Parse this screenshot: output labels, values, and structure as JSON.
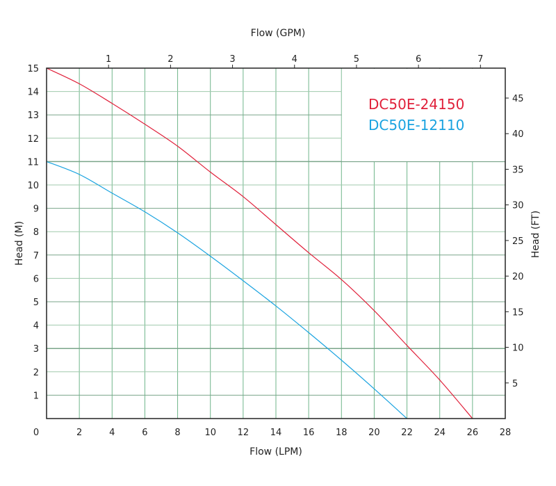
{
  "chart_data": {
    "type": "line",
    "xlabel": "Flow (LPM)",
    "x2label": "Flow (GPM)",
    "ylabel": "Head (M)",
    "y2label": "Head (FT)",
    "xlim": [
      0,
      28
    ],
    "ylim": [
      0,
      15
    ],
    "x2lim": [
      0,
      7.4
    ],
    "y2lim": [
      0,
      49.2
    ],
    "x_ticks": [
      0,
      2,
      4,
      6,
      8,
      10,
      12,
      14,
      16,
      18,
      20,
      22,
      24,
      26,
      28
    ],
    "y_ticks": [
      1,
      2,
      3,
      4,
      5,
      6,
      7,
      8,
      9,
      10,
      11,
      12,
      13,
      14,
      15
    ],
    "x2_ticks": [
      1,
      2,
      3,
      4,
      5,
      6,
      7
    ],
    "y2_ticks": [
      5,
      10,
      15,
      20,
      25,
      30,
      35,
      40,
      45
    ],
    "grid": true,
    "legend_placement": "top-right",
    "series": [
      {
        "name": "DC50E-24150",
        "color": "#e0203a",
        "x": [
          0,
          2,
          4,
          6,
          8,
          10,
          12,
          14,
          16,
          18,
          20,
          22,
          24,
          26
        ],
        "y": [
          15,
          14.33,
          13.49,
          12.6,
          11.66,
          10.55,
          9.5,
          8.3,
          7.1,
          5.95,
          4.62,
          3.13,
          1.65,
          0
        ]
      },
      {
        "name": "DC50E-12110",
        "color": "#1aa3e0",
        "x": [
          0,
          2,
          4,
          6,
          8,
          10,
          12,
          14,
          16,
          18,
          20,
          22
        ],
        "y": [
          11,
          10.45,
          9.65,
          8.85,
          7.95,
          6.95,
          5.9,
          4.82,
          3.68,
          2.5,
          1.27,
          0
        ]
      }
    ]
  }
}
